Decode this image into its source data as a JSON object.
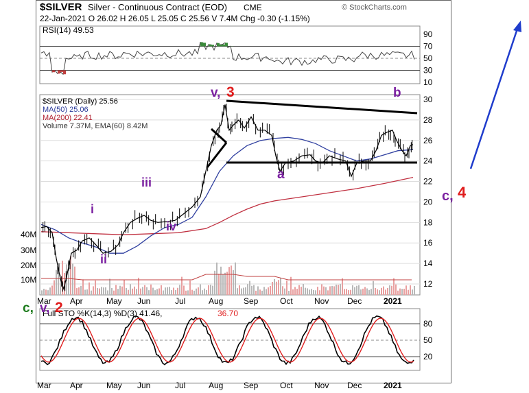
{
  "header": {
    "symbol": "$SILVER",
    "name": "Silver - Continuous Contract (EOD)",
    "exchange": "CME",
    "source": "© StockCharts.com",
    "quote": "22-Jan-2021  O 26.02  H 26.05  L 25.05  C 25.56  V 7.4M  Chg -0.30 (-1.15%)"
  },
  "rsi": {
    "label": "RSI(14) 49.53",
    "ticks": [
      "90",
      "70",
      "50",
      "30",
      "10"
    ]
  },
  "price": {
    "label": "$SILVER (Daily) 25.56",
    "ma50": "MA(50) 25.06",
    "ma200": "MA(200) 22.41",
    "volume": "Volume 7.37M, EMA(60) 8.42M",
    "ticks": [
      "30",
      "28",
      "26",
      "24",
      "22",
      "20",
      "18",
      "16",
      "14",
      "12"
    ],
    "vol_ticks": [
      "40M",
      "30M",
      "20M",
      "10M"
    ]
  },
  "months": [
    "Mar",
    "Apr",
    "May",
    "Jun",
    "Jul",
    "Aug",
    "Sep",
    "Oct",
    "Nov",
    "Dec",
    "2021"
  ],
  "sto": {
    "label": "Full STO %K(14,3) %D(3) 41.46,",
    "d_value": "36.70",
    "ticks": [
      "80",
      "50",
      "20"
    ]
  },
  "annotations": {
    "v3": "v,",
    "three": "3",
    "b": "b",
    "a": "a",
    "iii": "iii",
    "i": "i",
    "ii": "ii",
    "iv": "iv",
    "c4": "c,",
    "four": "4",
    "c": "c,",
    "v": "v,",
    "two": "2"
  },
  "colors": {
    "price": "#000000",
    "ma50": "#3040a0",
    "ma200": "#c03040",
    "wave_label": "#7a1fa0",
    "wave_number": "#e01b1b",
    "arrow": "#1f3ccc",
    "c_green": "#1a7a1a",
    "sto_k": "#000000",
    "sto_d": "#e02020"
  },
  "chart_data": {
    "type": "line",
    "title": "$SILVER Silver - Continuous Contract (EOD)",
    "x": [
      "Mar",
      "Apr",
      "May",
      "Jun",
      "Jul",
      "Aug",
      "Sep",
      "Oct",
      "Nov",
      "Dec",
      "2021"
    ],
    "price": [
      17.5,
      15.0,
      15.5,
      17.8,
      18.5,
      26.0,
      27.0,
      24.0,
      24.5,
      24.0,
      25.8
    ],
    "ma50": [
      17.2,
      16.2,
      15.2,
      16.5,
      17.5,
      21.0,
      25.0,
      25.5,
      25.0,
      24.5,
      25.0
    ],
    "ma200": [
      17.0,
      17.0,
      16.8,
      16.9,
      17.1,
      18.0,
      19.5,
      20.5,
      21.0,
      21.5,
      22.4
    ],
    "ylim": [
      11,
      31
    ],
    "rsi_ylim": [
      10,
      90
    ],
    "sto_ylim": [
      0,
      100
    ],
    "trendlines": {
      "top": [
        29.8,
        28.1
      ],
      "bottom": [
        22.0,
        22.0
      ]
    }
  }
}
